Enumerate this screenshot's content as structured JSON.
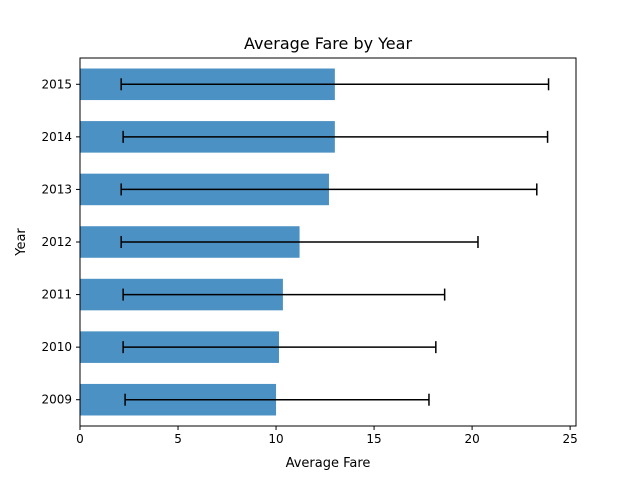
{
  "chart_data": {
    "type": "bar",
    "orientation": "horizontal",
    "title": "Average Fare by Year",
    "xlabel": "Average Fare",
    "ylabel": "Year",
    "categories": [
      "2009",
      "2010",
      "2011",
      "2012",
      "2013",
      "2014",
      "2015"
    ],
    "values": [
      10.0,
      10.15,
      10.35,
      11.2,
      12.7,
      13.0,
      13.0
    ],
    "error_low": [
      2.3,
      2.2,
      2.2,
      2.1,
      2.1,
      2.2,
      2.1
    ],
    "error_high": [
      17.8,
      18.15,
      18.6,
      20.3,
      23.3,
      23.85,
      23.9
    ],
    "xlim": [
      0,
      25.3
    ],
    "xticks": [
      0,
      5,
      10,
      15,
      20,
      25
    ],
    "grid": false,
    "legend": "none",
    "bar_color": "#4c91c3",
    "error_color": "#000000"
  }
}
